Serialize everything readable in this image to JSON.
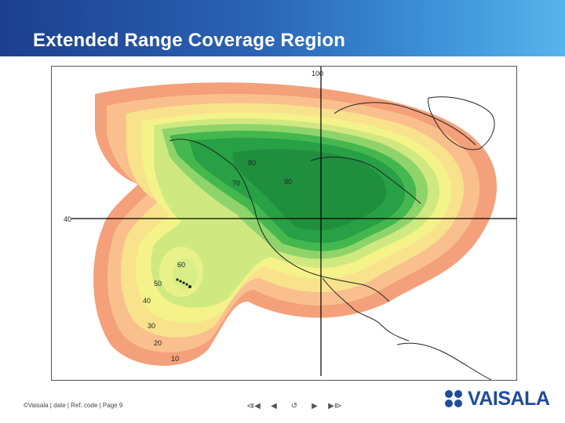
{
  "slide": {
    "title": "Extended Range Coverage Region",
    "footer": "©Vaisala | date | Ref. code | Page 9",
    "logo_text": "VAISALA",
    "brand_color": "#1f4c9c",
    "header_gradient": [
      "#1d3f8f",
      "#58b4ec"
    ]
  },
  "navigation": {
    "first": "⧏◀",
    "prev": "◀",
    "return": "↺",
    "next": "▶",
    "last": "▶⧐"
  },
  "map": {
    "grid_labels": {
      "top_longitude": "100",
      "left_latitude": "40"
    },
    "contour_labels": [
      "80",
      "70",
      "90",
      "60",
      "50",
      "40",
      "30",
      "20",
      "10"
    ],
    "contour_colors": {
      "ring_10": "#f4a07a",
      "ring_20": "#f9c08e",
      "ring_30": "#f8e28c",
      "ring_40": "#f4f38a",
      "ring_50": "#cfe980",
      "ring_60": "#8fd46b",
      "ring_70": "#44b84e",
      "ring_80": "#27a046",
      "ring_90": "#1f8f3e"
    }
  }
}
